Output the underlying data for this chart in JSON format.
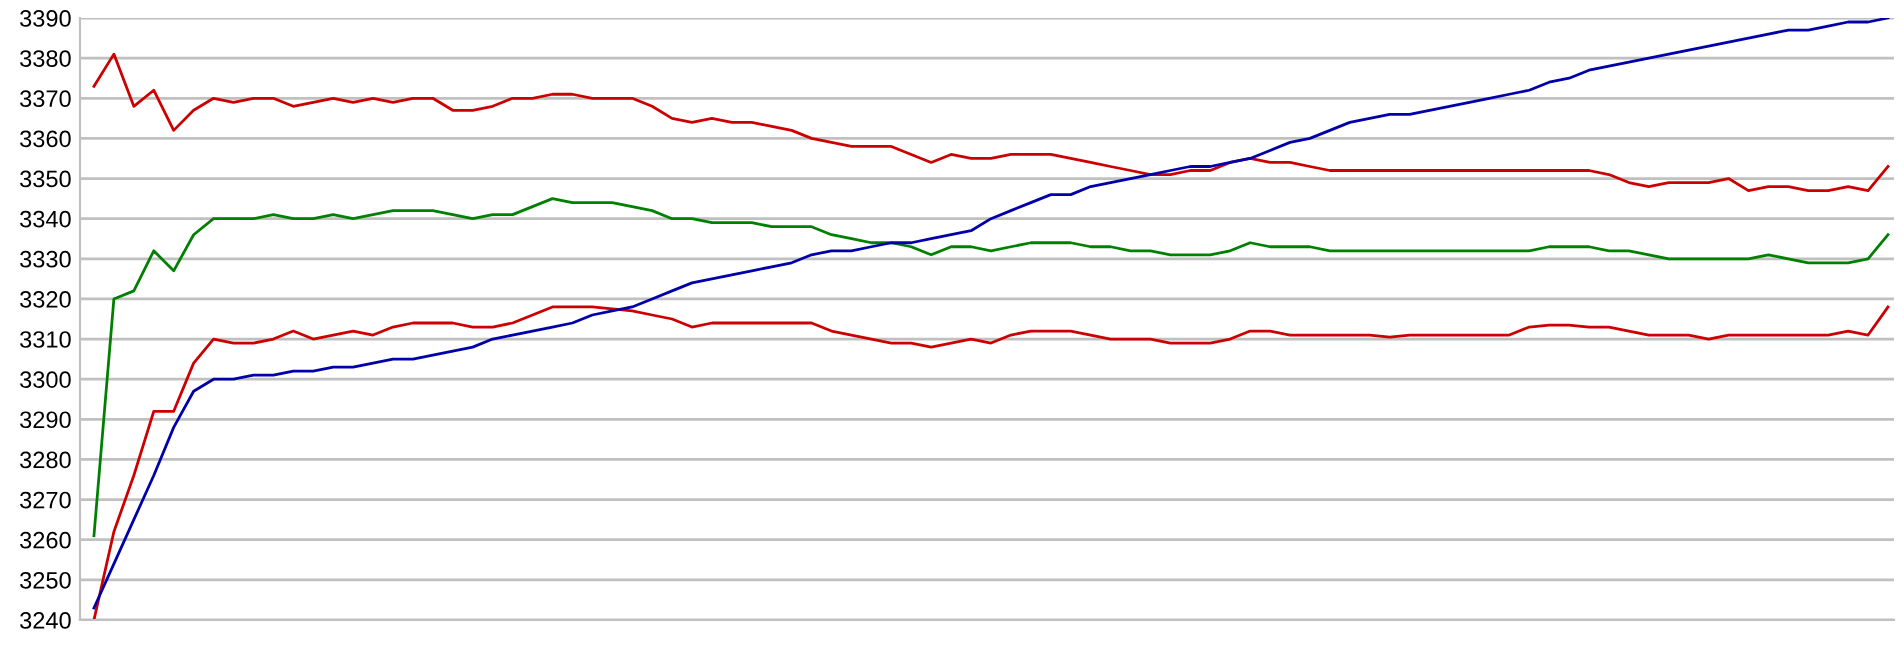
{
  "chart_data": {
    "type": "line",
    "categories": [
      null,
      null,
      null,
      null,
      null,
      null,
      null,
      null,
      null,
      null,
      null,
      null,
      null,
      null,
      null,
      null,
      null,
      null,
      null,
      null,
      null,
      null,
      null,
      null,
      null,
      null,
      null,
      null,
      null,
      null,
      null,
      null,
      null,
      null,
      null,
      null,
      null,
      null,
      null,
      null,
      null,
      null,
      null,
      null,
      null,
      null,
      null,
      null,
      null,
      null,
      null,
      null,
      null,
      null,
      null,
      null,
      null,
      null,
      null,
      null,
      null,
      null,
      null,
      null,
      null,
      null,
      null,
      null,
      null,
      null,
      null,
      null,
      null,
      null,
      null,
      null,
      null,
      null,
      null,
      null,
      null,
      null,
      null,
      null,
      null,
      null,
      null,
      null,
      null,
      null,
      null
    ],
    "ylim": [
      3240,
      3390
    ],
    "yticks": [
      3240,
      3250,
      3260,
      3270,
      3280,
      3290,
      3300,
      3310,
      3320,
      3330,
      3340,
      3350,
      3360,
      3370,
      3380,
      3390
    ],
    "tick_labels": "y",
    "grid": "y",
    "marker": "none",
    "line_style": "solid",
    "series": [
      {
        "color": "#cc0000",
        "values": [
          3373,
          3381,
          3368,
          3372,
          3362,
          3367,
          3370,
          3369,
          3370,
          3370,
          3368,
          3369,
          3370,
          3369,
          3370,
          3369,
          3370,
          3370,
          3367,
          3367,
          3368,
          3370,
          3370,
          3371,
          3371,
          3370,
          3370,
          3370,
          3368,
          3365,
          3364,
          3365,
          3364,
          3364,
          3363,
          3362,
          3360,
          3359,
          3358,
          3358,
          3358,
          3356,
          3354,
          3356,
          3355,
          3355,
          3356,
          3356,
          3356,
          3355,
          3354,
          3353,
          3352,
          3351,
          3351,
          3352,
          3352,
          3354,
          3355,
          3354,
          3354,
          3353,
          3352,
          3352,
          3352,
          3352,
          3352,
          3352,
          3352,
          3352,
          3352,
          3352,
          3352,
          3352,
          3352,
          3352,
          3351,
          3349,
          3348,
          3349,
          3349,
          3349,
          3350,
          3347,
          3348,
          3348,
          3347,
          3347,
          3348,
          3347,
          3353
        ]
      },
      {
        "color": "#008000",
        "values": [
          3261,
          3320,
          3322,
          3332,
          3327,
          3336,
          3340,
          3340,
          3340,
          3341,
          3340,
          3340,
          3341,
          3340,
          3341,
          3342,
          3342,
          3342,
          3341,
          3340,
          3341,
          3341,
          3343,
          3345,
          3344,
          3344,
          3344,
          3343,
          3342,
          3340,
          3340,
          3339,
          3339,
          3339,
          3338,
          3338,
          3338,
          3336,
          3335,
          3334,
          3334,
          3333,
          3331,
          3333,
          3333,
          3332,
          3333,
          3334,
          3334,
          3334,
          3333,
          3333,
          3332,
          3332,
          3331,
          3331,
          3331,
          3332,
          3334,
          3333,
          3333,
          3333,
          3332,
          3332,
          3332,
          3332,
          3332,
          3332,
          3332,
          3332,
          3332,
          3332,
          3332,
          3333,
          3333,
          3333,
          3332,
          3332,
          3331,
          3330,
          3330,
          3330,
          3330,
          3330,
          3331,
          3330,
          3329,
          3329,
          3329,
          3330,
          3336
        ]
      },
      {
        "color": "#cc0000",
        "values": [
          3240,
          3262,
          3276,
          3292,
          3292,
          3304,
          3310,
          3309,
          3309,
          3310,
          3312,
          3310,
          3311,
          3312,
          3311,
          3313,
          3314,
          3314,
          3314,
          3313,
          3313,
          3314,
          3316,
          3318,
          3318,
          3318,
          3317.5,
          3317,
          3316,
          3315,
          3313,
          3314,
          3314,
          3314,
          3314,
          3314,
          3314,
          3312,
          3311,
          3310,
          3309,
          3309,
          3308,
          3309,
          3310,
          3309,
          3311,
          3312,
          3312,
          3312,
          3311,
          3310,
          3310,
          3310,
          3309,
          3309,
          3309,
          3310,
          3312,
          3312,
          3311,
          3311,
          3311,
          3311,
          3311,
          3310.5,
          3311,
          3311,
          3311,
          3311,
          3311,
          3311,
          3313,
          3313.5,
          3313.5,
          3313,
          3313,
          3312,
          3311,
          3311,
          3311,
          3310,
          3311,
          3311,
          3311,
          3311,
          3311,
          3311,
          3312,
          3311,
          3318
        ]
      },
      {
        "color": "#0000aa",
        "values": [
          3243,
          3254,
          3265,
          3276,
          3288,
          3297,
          3300,
          3300,
          3301,
          3301,
          3302,
          3302,
          3303,
          3303,
          3304,
          3305,
          3305,
          3306,
          3307,
          3308,
          3310,
          3311,
          3312,
          3313,
          3314,
          3316,
          3317,
          3318,
          3320,
          3322,
          3324,
          3325,
          3326,
          3327,
          3328,
          3329,
          3331,
          3332,
          3332,
          3333,
          3334,
          3334,
          3335,
          3336,
          3337,
          3340,
          3342,
          3344,
          3346,
          3346,
          3348,
          3349,
          3350,
          3351,
          3352,
          3353,
          3353,
          3354,
          3355,
          3357,
          3359,
          3360,
          3362,
          3364,
          3365,
          3366,
          3366,
          3367,
          3368,
          3369,
          3370,
          3371,
          3372,
          3374,
          3375,
          3377,
          3378,
          3379,
          3380,
          3381,
          3382,
          3383,
          3384,
          3385,
          3386,
          3387,
          3387,
          3388,
          3389,
          3389,
          3390
        ]
      }
    ]
  }
}
